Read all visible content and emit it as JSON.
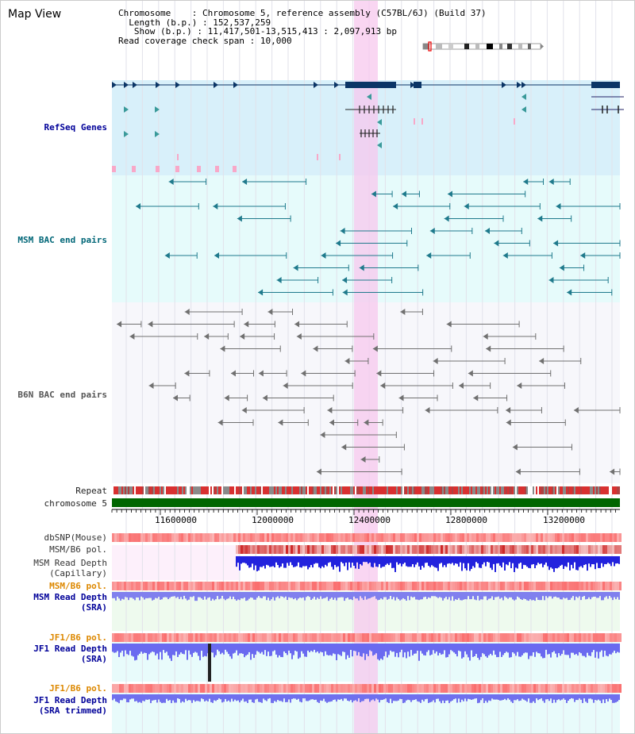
{
  "page_title": "Map View",
  "info": {
    "chromosome_label": "Chromosome",
    "chromosome_value": "Chromosome 5, reference assembly (C57BL/6J) (Build 37)",
    "length_label": "Length (b.p.)",
    "length_value": "152,537,259",
    "show_label": "Show (b.p.)",
    "show_value": "11,417,501-13,515,413 : 2,097,913 bp",
    "span_label": "Read coverage check span",
    "span_value": "10,000"
  },
  "tracks": {
    "refseq": "RefSeq Genes",
    "msm_bac": "MSM BAC end pairs",
    "b6n_bac": "B6N BAC end pairs",
    "repeat": "Repeat",
    "chromosome": "chromosome 5",
    "dbsnp": "dbSNP(Mouse)",
    "msm_b6_pol_1": "MSM/B6 pol.",
    "msm_read_depth_cap_1": "MSM Read Depth",
    "msm_read_depth_cap_2": "(Capillary)",
    "msm_b6_pol_2": "MSM/B6 pol.",
    "msm_read_depth_sra_1": "MSM Read Depth",
    "msm_read_depth_sra_2": "(SRA)",
    "jf1_b6_pol_1": "JF1/B6 pol.",
    "jf1_read_depth_sra_1": "JF1 Read Depth",
    "jf1_read_depth_sra_2": "(SRA)",
    "jf1_b6_pol_2": "JF1/B6 pol.",
    "jf1_read_depth_trim_1": "JF1 Read Depth",
    "jf1_read_depth_trim_2": "(SRA trimmed)"
  },
  "axis": {
    "ticks": [
      "11600000",
      "12000000",
      "12400000",
      "12800000",
      "13200000"
    ]
  },
  "colors": {
    "refseq_label": "#000099",
    "msm_bac_label": "#006677",
    "b6n_bac_label": "#555555",
    "pol_label": "#dd8800",
    "depth_label": "#000099",
    "highlight": "#f7c8ee",
    "chromosome_bar": "#006600"
  }
}
